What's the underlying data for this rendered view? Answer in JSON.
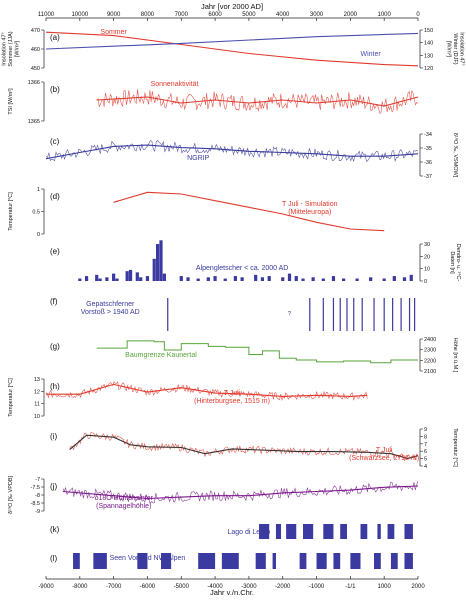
{
  "chart_data": {
    "type": "line",
    "top_axis": {
      "label": "Jahr [vor 2000 AD]",
      "range": [
        11000,
        0
      ],
      "ticks": [
        11000,
        10000,
        9000,
        8000,
        7000,
        6000,
        5000,
        4000,
        3000,
        2000,
        1000,
        0
      ]
    },
    "bottom_axis": {
      "label": "Jahr v./n.Chr.",
      "range": [
        -9000,
        2000
      ],
      "ticks": [
        -9000,
        -8000,
        -7000,
        -6000,
        -5000,
        -4000,
        -3000,
        -2000,
        -1000,
        -1,
        1000,
        2000
      ],
      "tick_labels": [
        "-9000",
        "-8000",
        "-7000",
        "-6000",
        "-5000",
        "-4000",
        "-3000",
        "-2000",
        "-1000",
        "-1/1",
        "1000",
        "2000"
      ]
    },
    "panels": [
      {
        "letter": "(a)",
        "left_label": "Insolation 47°\nSommer (JJA)\n[W/m²]",
        "right_label": "Insolation 47°\nWinter (DJF)\n[W/m²]",
        "left_ticks": [
          450,
          460,
          470
        ],
        "right_ticks": [
          120,
          130,
          140,
          150
        ],
        "series": [
          {
            "name": "Sommer",
            "axis": "left",
            "color": "#e03a2e",
            "points": [
              [
                -9000,
                479
              ],
              [
                -7000,
                476
              ],
              [
                -5000,
                468
              ],
              [
                -3000,
                460
              ],
              [
                -1000,
                454
              ],
              [
                1000,
                450
              ],
              [
                2000,
                449
              ]
            ]
          },
          {
            "name": "Winter",
            "axis": "right",
            "color": "#4a4fb0",
            "points": [
              [
                -9000,
                135
              ],
              [
                -5000,
                140
              ],
              [
                -1000,
                146
              ],
              [
                2000,
                149
              ]
            ]
          }
        ]
      },
      {
        "letter": "(b)",
        "left_label": "TSI [W/m²]",
        "left_ticks": [
          1365,
          1366
        ],
        "series": [
          {
            "name": "Sonnenaktivität",
            "color": "#e03a2e",
            "noisy": true,
            "points": [
              [
                -7500,
                1365.6
              ],
              [
                -6000,
                1365.7
              ],
              [
                -5000,
                1365.5
              ],
              [
                -4000,
                1365.6
              ],
              [
                -3000,
                1365.5
              ],
              [
                -2000,
                1365.6
              ],
              [
                -1000,
                1365.5
              ],
              [
                0,
                1365.6
              ],
              [
                1000,
                1365.4
              ],
              [
                2000,
                1365.7
              ]
            ]
          }
        ]
      },
      {
        "letter": "(c)",
        "right_label": "δ¹⁸O ‰, VSMOW]",
        "right_ticks": [
          -34,
          -35,
          -36,
          -37
        ],
        "series": [
          {
            "name": "NGRIP",
            "color": "#3a3a9a",
            "noisy": true,
            "points": [
              [
                -9000,
                -35.8
              ],
              [
                -8000,
                -35.3
              ],
              [
                -7000,
                -34.8
              ],
              [
                -6000,
                -34.7
              ],
              [
                -5000,
                -34.9
              ],
              [
                -4000,
                -35.0
              ],
              [
                -3000,
                -35.2
              ],
              [
                -2000,
                -35.3
              ],
              [
                -1000,
                -35.4
              ],
              [
                0,
                -35.6
              ],
              [
                1000,
                -35.6
              ],
              [
                2000,
                -35.4
              ]
            ]
          }
        ]
      },
      {
        "letter": "(d)",
        "left_label": "Temperatur [°C]",
        "left_ticks": [
          1.0,
          0.5,
          0.0
        ],
        "series": [
          {
            "name": "T Juli - Simulation (Mitteleuropa)",
            "color": "#e03a2e",
            "points": [
              [
                -7000,
                0.9
              ],
              [
                -6000,
                1.2
              ],
              [
                -5000,
                1.15
              ],
              [
                -4000,
                0.95
              ],
              [
                -3000,
                0.75
              ],
              [
                -2000,
                0.55
              ],
              [
                -1000,
                0.3
              ],
              [
                0,
                0.1
              ],
              [
                1000,
                0.05
              ]
            ]
          }
        ]
      },
      {
        "letter": "(e)",
        "right_label": "Dendro- u. ¹⁴C-\nDaten [n]",
        "right_ticks": [
          0,
          10,
          20,
          30
        ],
        "series": [
          {
            "name": "Alpengletscher < ca. 2000 AD",
            "type": "bar",
            "color": "#3a3aa0",
            "points": [
              [
                -8000,
                2
              ],
              [
                -7800,
                4
              ],
              [
                -7500,
                5
              ],
              [
                -7400,
                2
              ],
              [
                -7200,
                3
              ],
              [
                -7000,
                6
              ],
              [
                -6900,
                2
              ],
              [
                -6600,
                8
              ],
              [
                -6500,
                9
              ],
              [
                -6300,
                7
              ],
              [
                -6200,
                3
              ],
              [
                -6000,
                4
              ],
              [
                -5800,
                18
              ],
              [
                -5700,
                30
              ],
              [
                -5600,
                33
              ],
              [
                -5500,
                6
              ],
              [
                -5000,
                4
              ],
              [
                -4800,
                3
              ],
              [
                -4500,
                2
              ],
              [
                -4200,
                3
              ],
              [
                -4000,
                4
              ],
              [
                -3700,
                2
              ],
              [
                -3400,
                4
              ],
              [
                -3200,
                3
              ],
              [
                -2800,
                5
              ],
              [
                -2600,
                3
              ],
              [
                -2400,
                4
              ],
              [
                -2000,
                3
              ],
              [
                -1800,
                6
              ],
              [
                -1600,
                4
              ],
              [
                -1400,
                2
              ],
              [
                -1100,
                3
              ],
              [
                -800,
                2
              ],
              [
                -500,
                4
              ],
              [
                -200,
                2
              ],
              [
                200,
                2
              ],
              [
                600,
                3
              ],
              [
                1000,
                2
              ],
              [
                1300,
                4
              ],
              [
                1600,
                3
              ],
              [
                1800,
                5
              ]
            ]
          }
        ]
      },
      {
        "letter": "(f)",
        "left_label": "Gletscher-\nvorstoß",
        "series": [
          {
            "name": "Gepatschferner Vorstoß > 1940 AD",
            "type": "events",
            "color": "#3a3aa0",
            "x": [
              -5400,
              -1200,
              -800,
              -500,
              -300,
              -100,
              100,
              350,
              700,
              1000,
              1250,
              1500,
              1750,
              1900
            ]
          }
        ],
        "annotation": "?"
      },
      {
        "letter": "(g)",
        "right_label": "Höhe [m ü.M.]",
        "right_ticks": [
          2100,
          2200,
          2300,
          2400
        ],
        "series": [
          {
            "name": "Baumgrenze Kaunertal",
            "type": "step",
            "color": "#58a53a",
            "points": [
              [
                -7500,
                2330
              ],
              [
                -6600,
                2410
              ],
              [
                -5800,
                2400
              ],
              [
                -5500,
                2310
              ],
              [
                -5000,
                2380
              ],
              [
                -4200,
                2350
              ],
              [
                -3700,
                2340
              ],
              [
                -3000,
                2260
              ],
              [
                -2600,
                2300
              ],
              [
                -2100,
                2220
              ],
              [
                -1600,
                2200
              ],
              [
                -1000,
                2180
              ],
              [
                -200,
                2190
              ],
              [
                600,
                2170
              ],
              [
                1200,
                2200
              ],
              [
                1800,
                2200
              ]
            ]
          }
        ]
      },
      {
        "letter": "(h)",
        "left_label": "Temperatur [°C]",
        "left_ticks": [
          10,
          11,
          12,
          13
        ],
        "series": [
          {
            "name": "T Juli (Hinterburgsee, 1515 m)",
            "color": "#e03a2e",
            "noisy": true,
            "points": [
              [
                -9000,
                11.8
              ],
              [
                -8000,
                11.8
              ],
              [
                -7000,
                12.7
              ],
              [
                -6000,
                12.0
              ],
              [
                -5000,
                12.4
              ],
              [
                -4000,
                11.9
              ],
              [
                -3000,
                11.8
              ],
              [
                -2000,
                11.6
              ],
              [
                -1000,
                11.7
              ],
              [
                0,
                11.6
              ],
              [
                500,
                11.7
              ]
            ]
          }
        ]
      },
      {
        "letter": "(i)",
        "right_label": "Temperatur [°C]",
        "right_ticks": [
          4,
          5,
          6,
          7,
          8,
          9
        ],
        "series": [
          {
            "name": "T Juli (Schwarzsee, 2796 m)",
            "color": "#e03a2e",
            "smooth_color": "#333333",
            "noisy": true,
            "points": [
              [
                -8300,
                6.2
              ],
              [
                -7800,
                8.3
              ],
              [
                -7000,
                8.0
              ],
              [
                -6500,
                6.9
              ],
              [
                -6000,
                6.6
              ],
              [
                -5000,
                6.5
              ],
              [
                -4300,
                5.6
              ],
              [
                -3500,
                6.3
              ],
              [
                -2500,
                6.1
              ],
              [
                -1500,
                5.9
              ],
              [
                -500,
                5.9
              ],
              [
                500,
                5.8
              ],
              [
                1200,
                5.6
              ],
              [
                1700,
                4.9
              ],
              [
                2000,
                5.3
              ]
            ]
          }
        ]
      },
      {
        "letter": "(j)",
        "left_label": "δ¹⁸O [‰ VPDB]",
        "left_ticks": [
          -9.0,
          -8.5,
          -8.0,
          -7.5,
          -7.0
        ],
        "series": [
          {
            "name": "δ18O Höhlensinter (Spannagelhöhle)",
            "color": "#7a1a8a",
            "noisy": true,
            "points": [
              [
                -8500,
                -7.7
              ],
              [
                -7000,
                -8.0
              ],
              [
                -6000,
                -8.2
              ],
              [
                -5000,
                -8.1
              ],
              [
                -4000,
                -8.0
              ],
              [
                -3000,
                -8.0
              ],
              [
                -2000,
                -7.8
              ],
              [
                -1000,
                -7.7
              ],
              [
                0,
                -7.6
              ],
              [
                1000,
                -7.4
              ],
              [
                2000,
                -7.3
              ]
            ]
          }
        ]
      },
      {
        "letter": "(k)",
        "right_label": "See-\nhochstand",
        "series": [
          {
            "name": "Lago di Ledro",
            "type": "intervals",
            "color": "#3a3aa0",
            "intervals": [
              [
                -2700,
                -2400
              ],
              [
                -2200,
                -2050
              ],
              [
                -1900,
                -1600
              ],
              [
                -1400,
                -1100
              ],
              [
                -800,
                -500
              ],
              [
                -300,
                -100
              ],
              [
                300,
                500
              ],
              [
                800,
                900
              ],
              [
                1100,
                1300
              ],
              [
                1600,
                1850
              ]
            ]
          }
        ]
      },
      {
        "letter": "(l)",
        "left_label": "See-\nhochstand",
        "series": [
          {
            "name": "Seen Vorland NW-Alpen",
            "type": "intervals",
            "color": "#3a3aa0",
            "intervals": [
              [
                -8200,
                -8000
              ],
              [
                -7600,
                -7200
              ],
              [
                -6300,
                -6000
              ],
              [
                -5600,
                -5300
              ],
              [
                -4500,
                -4000
              ],
              [
                -3800,
                -3300
              ],
              [
                -2800,
                -2500
              ],
              [
                -2300,
                -2200
              ],
              [
                -1500,
                -1300
              ],
              [
                -1000,
                -700
              ],
              [
                -500,
                -300
              ],
              [
                0,
                300
              ],
              [
                700,
                900
              ],
              [
                1200,
                1400
              ],
              [
                1600,
                1850
              ]
            ]
          }
        ]
      }
    ]
  }
}
